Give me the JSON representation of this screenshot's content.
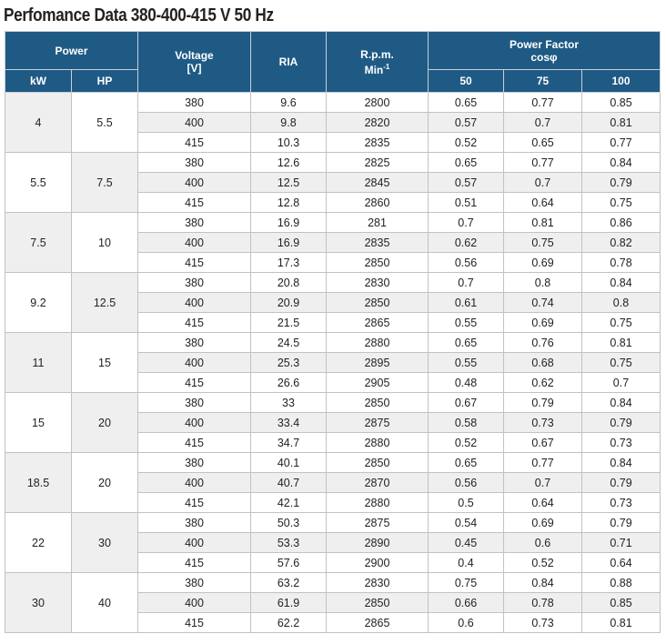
{
  "title": "Perfomance Data 380-400-415 V 50 Hz",
  "headers": {
    "power": "Power",
    "kw": "kW",
    "hp": "HP",
    "voltage": "Voltage",
    "voltage_unit": "[V]",
    "ria": "RIA",
    "rpm": "R.p.m.",
    "rpm_unit": "Min",
    "rpm_unit_exp": "-1",
    "power_factor": "Power Factor",
    "cosphi": "cosφ",
    "pf_50": "50",
    "pf_75": "75",
    "pf_100": "100"
  },
  "groups": [
    {
      "kw": "4",
      "hp": "5.5",
      "rows": [
        {
          "v": "380",
          "ria": "9.6",
          "rpm": "2800",
          "pf50": "0.65",
          "pf75": "0.77",
          "pf100": "0.85"
        },
        {
          "v": "400",
          "ria": "9.8",
          "rpm": "2820",
          "pf50": "0.57",
          "pf75": "0.7",
          "pf100": "0.81"
        },
        {
          "v": "415",
          "ria": "10.3",
          "rpm": "2835",
          "pf50": "0.52",
          "pf75": "0.65",
          "pf100": "0.77"
        }
      ]
    },
    {
      "kw": "5.5",
      "hp": "7.5",
      "rows": [
        {
          "v": "380",
          "ria": "12.6",
          "rpm": "2825",
          "pf50": "0.65",
          "pf75": "0.77",
          "pf100": "0.84"
        },
        {
          "v": "400",
          "ria": "12.5",
          "rpm": "2845",
          "pf50": "0.57",
          "pf75": "0.7",
          "pf100": "0.79"
        },
        {
          "v": "415",
          "ria": "12.8",
          "rpm": "2860",
          "pf50": "0.51",
          "pf75": "0.64",
          "pf100": "0.75"
        }
      ]
    },
    {
      "kw": "7.5",
      "hp": "10",
      "rows": [
        {
          "v": "380",
          "ria": "16.9",
          "rpm": "281",
          "pf50": "0.7",
          "pf75": "0.81",
          "pf100": "0.86"
        },
        {
          "v": "400",
          "ria": "16.9",
          "rpm": "2835",
          "pf50": "0.62",
          "pf75": "0.75",
          "pf100": "0.82"
        },
        {
          "v": "415",
          "ria": "17.3",
          "rpm": "2850",
          "pf50": "0.56",
          "pf75": "0.69",
          "pf100": "0.78"
        }
      ]
    },
    {
      "kw": "9.2",
      "hp": "12.5",
      "rows": [
        {
          "v": "380",
          "ria": "20.8",
          "rpm": "2830",
          "pf50": "0.7",
          "pf75": "0.8",
          "pf100": "0.84"
        },
        {
          "v": "400",
          "ria": "20.9",
          "rpm": "2850",
          "pf50": "0.61",
          "pf75": "0.74",
          "pf100": "0.8"
        },
        {
          "v": "415",
          "ria": "21.5",
          "rpm": "2865",
          "pf50": "0.55",
          "pf75": "0.69",
          "pf100": "0.75"
        }
      ]
    },
    {
      "kw": "11",
      "hp": "15",
      "rows": [
        {
          "v": "380",
          "ria": "24.5",
          "rpm": "2880",
          "pf50": "0.65",
          "pf75": "0.76",
          "pf100": "0.81"
        },
        {
          "v": "400",
          "ria": "25.3",
          "rpm": "2895",
          "pf50": "0.55",
          "pf75": "0.68",
          "pf100": "0.75"
        },
        {
          "v": "415",
          "ria": "26.6",
          "rpm": "2905",
          "pf50": "0.48",
          "pf75": "0.62",
          "pf100": "0.7"
        }
      ]
    },
    {
      "kw": "15",
      "hp": "20",
      "rows": [
        {
          "v": "380",
          "ria": "33",
          "rpm": "2850",
          "pf50": "0.67",
          "pf75": "0.79",
          "pf100": "0.84"
        },
        {
          "v": "400",
          "ria": "33.4",
          "rpm": "2875",
          "pf50": "0.58",
          "pf75": "0.73",
          "pf100": "0.79"
        },
        {
          "v": "415",
          "ria": "34.7",
          "rpm": "2880",
          "pf50": "0.52",
          "pf75": "0.67",
          "pf100": "0.73"
        }
      ]
    },
    {
      "kw": "18.5",
      "hp": "20",
      "rows": [
        {
          "v": "380",
          "ria": "40.1",
          "rpm": "2850",
          "pf50": "0.65",
          "pf75": "0.77",
          "pf100": "0.84"
        },
        {
          "v": "400",
          "ria": "40.7",
          "rpm": "2870",
          "pf50": "0.56",
          "pf75": "0.7",
          "pf100": "0.79"
        },
        {
          "v": "415",
          "ria": "42.1",
          "rpm": "2880",
          "pf50": "0.5",
          "pf75": "0.64",
          "pf100": "0.73"
        }
      ]
    },
    {
      "kw": "22",
      "hp": "30",
      "rows": [
        {
          "v": "380",
          "ria": "50.3",
          "rpm": "2875",
          "pf50": "0.54",
          "pf75": "0.69",
          "pf100": "0.79"
        },
        {
          "v": "400",
          "ria": "53.3",
          "rpm": "2890",
          "pf50": "0.45",
          "pf75": "0.6",
          "pf100": "0.71"
        },
        {
          "v": "415",
          "ria": "57.6",
          "rpm": "2900",
          "pf50": "0.4",
          "pf75": "0.52",
          "pf100": "0.64"
        }
      ]
    },
    {
      "kw": "30",
      "hp": "40",
      "rows": [
        {
          "v": "380",
          "ria": "63.2",
          "rpm": "2830",
          "pf50": "0.75",
          "pf75": "0.84",
          "pf100": "0.88"
        },
        {
          "v": "400",
          "ria": "61.9",
          "rpm": "2850",
          "pf50": "0.66",
          "pf75": "0.78",
          "pf100": "0.85"
        },
        {
          "v": "415",
          "ria": "62.2",
          "rpm": "2865",
          "pf50": "0.6",
          "pf75": "0.73",
          "pf100": "0.81"
        }
      ]
    }
  ]
}
